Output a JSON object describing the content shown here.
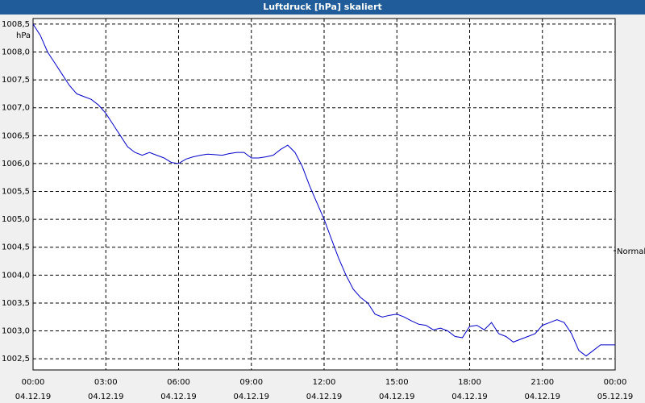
{
  "window": {
    "title": "Luftdruck [hPa] skaliert"
  },
  "chart_data": {
    "type": "line",
    "title": "Luftdruck [hPa] skaliert",
    "ylabel": "hPa",
    "xlabel": "",
    "grid": true,
    "legend_position": "right",
    "xlim": [
      0,
      24
    ],
    "ylim": [
      1002.3,
      1008.6
    ],
    "y_ticks": [
      "1008,5",
      "1008,0",
      "1007,5",
      "1007,0",
      "1006,5",
      "1006,0",
      "1005,5",
      "1005,0",
      "1004,5",
      "1004,0",
      "1003,5",
      "1003,0",
      "1002,5"
    ],
    "y_tick_values": [
      1008.5,
      1008.0,
      1007.5,
      1007.0,
      1006.5,
      1006.0,
      1005.5,
      1005.0,
      1004.5,
      1004.0,
      1003.5,
      1003.0,
      1002.5
    ],
    "x_ticks": [
      {
        "time": "00:00",
        "date": "04.12.19"
      },
      {
        "time": "03:00",
        "date": "04.12.19"
      },
      {
        "time": "06:00",
        "date": "04.12.19"
      },
      {
        "time": "09:00",
        "date": "04.12.19"
      },
      {
        "time": "12:00",
        "date": "04.12.19"
      },
      {
        "time": "15:00",
        "date": "04.12.19"
      },
      {
        "time": "18:00",
        "date": "04.12.19"
      },
      {
        "time": "21:00",
        "date": "04.12.19"
      },
      {
        "time": "00:00",
        "date": "05.12.19"
      }
    ],
    "x_tick_values": [
      0,
      3,
      6,
      9,
      12,
      15,
      18,
      21,
      24
    ],
    "series": [
      {
        "name": "Normal",
        "color": "#0000cc",
        "x": [
          0.0,
          0.3,
          0.6,
          0.9,
          1.2,
          1.5,
          1.8,
          2.1,
          2.4,
          2.7,
          3.0,
          3.3,
          3.6,
          3.9,
          4.2,
          4.5,
          4.8,
          5.1,
          5.4,
          5.7,
          6.0,
          6.3,
          6.6,
          6.9,
          7.2,
          7.5,
          7.8,
          8.1,
          8.4,
          8.7,
          9.0,
          9.3,
          9.6,
          9.9,
          10.2,
          10.5,
          10.8,
          11.1,
          11.4,
          11.7,
          12.0,
          12.3,
          12.6,
          12.9,
          13.2,
          13.5,
          13.8,
          14.1,
          14.4,
          14.7,
          15.0,
          15.3,
          15.6,
          15.9,
          16.2,
          16.5,
          16.8,
          17.1,
          17.4,
          17.7,
          18.0,
          18.3,
          18.6,
          18.9,
          19.2,
          19.5,
          19.8,
          20.1,
          20.4,
          20.7,
          21.0,
          21.3,
          21.6,
          21.9,
          22.2,
          22.5,
          22.8,
          23.1,
          23.4,
          23.7,
          24.0
        ],
        "y": [
          1008.5,
          1008.3,
          1008.0,
          1007.8,
          1007.6,
          1007.4,
          1007.25,
          1007.2,
          1007.15,
          1007.05,
          1006.9,
          1006.7,
          1006.5,
          1006.3,
          1006.2,
          1006.15,
          1006.2,
          1006.15,
          1006.1,
          1006.02,
          1006.0,
          1006.08,
          1006.12,
          1006.15,
          1006.17,
          1006.16,
          1006.15,
          1006.18,
          1006.2,
          1006.2,
          1006.1,
          1006.1,
          1006.12,
          1006.15,
          1006.25,
          1006.33,
          1006.2,
          1005.95,
          1005.6,
          1005.3,
          1005.0,
          1004.65,
          1004.3,
          1004.0,
          1003.75,
          1003.6,
          1003.5,
          1003.3,
          1003.25,
          1003.28,
          1003.3,
          1003.25,
          1003.18,
          1003.12,
          1003.1,
          1003.02,
          1003.05,
          1003.0,
          1002.9,
          1002.88,
          1003.08,
          1003.1,
          1003.02,
          1003.15,
          1002.95,
          1002.9,
          1002.8,
          1002.85,
          1002.9,
          1002.95,
          1003.1,
          1003.15,
          1003.2,
          1003.15,
          1002.95,
          1002.65,
          1002.55,
          1002.65,
          1002.75,
          1002.75,
          1002.75
        ]
      }
    ]
  }
}
